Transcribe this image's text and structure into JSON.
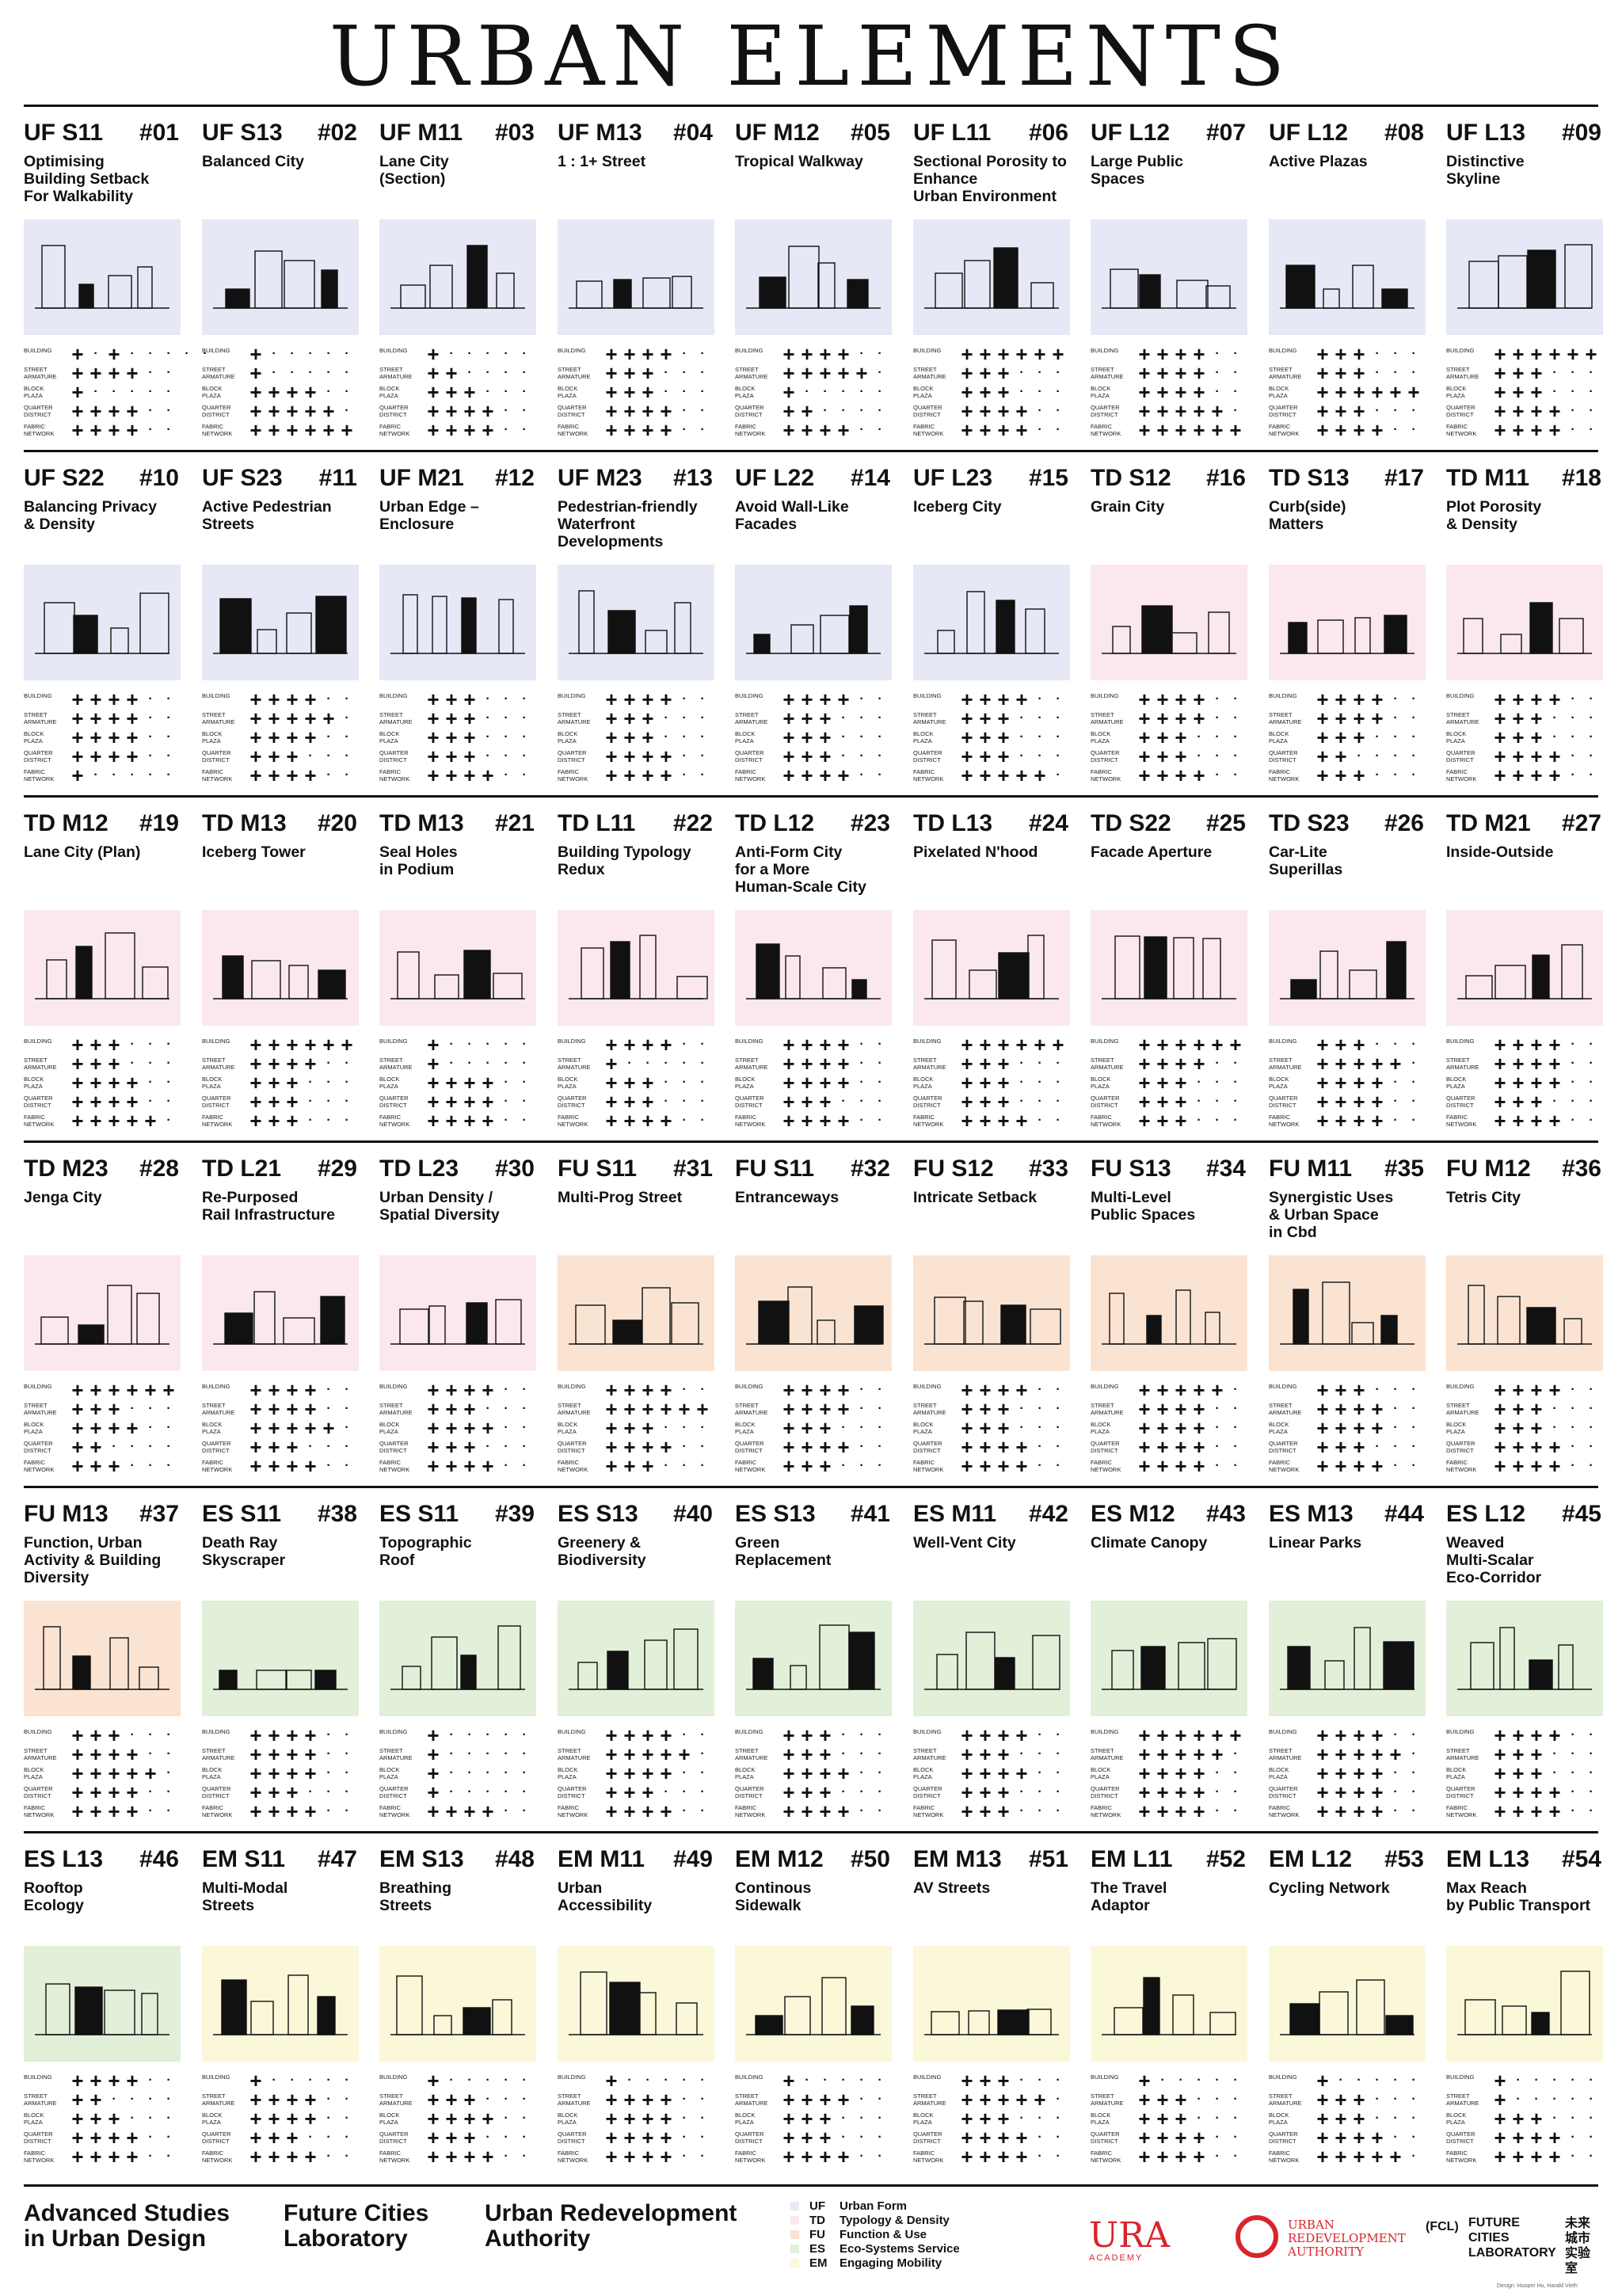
{
  "title": "URBAN ELEMENTS",
  "scale_labels": [
    "BUILDING",
    "STREET\nARMATURE",
    "BLOCK\nPLAZA",
    "QUARTER\nDISTRICT",
    "FABRIC\nNETWORK"
  ],
  "elements": [
    {
      "code": "UF S11",
      "num": "#01",
      "name": "Optimising\nBuilding Setback\nFor Walkability",
      "cat": "UF",
      "scale": [
        "p d p d d d d d",
        "p p p p d d",
        "p d d d d d",
        "p p p p d d",
        "p p p p d d"
      ]
    },
    {
      "code": "UF S13",
      "num": "#02",
      "name": "Balanced City",
      "cat": "UF",
      "scale": [
        "p d d d d d",
        "p d d d d d",
        "p p p p d d",
        "p p p p p d",
        "p p p p p p"
      ]
    },
    {
      "code": "UF M11",
      "num": "#03",
      "name": "Lane City\n(Section)",
      "cat": "UF",
      "scale": [
        "p d d d d d",
        "p p d d d d",
        "p p p d d d",
        "p p p p d d",
        "p p p p d d"
      ]
    },
    {
      "code": "UF M13",
      "num": "#04",
      "name": "1 : 1+ Street",
      "cat": "UF",
      "scale": [
        "p p p p d d",
        "p p p d d d",
        "p p p d d d",
        "p p p p d d",
        "p p p p d d"
      ]
    },
    {
      "code": "UF M12",
      "num": "#05",
      "name": "Tropical Walkway",
      "cat": "UF",
      "scale": [
        "p p p p d d",
        "p p p p p d",
        "p d d d d d",
        "p p d d d d",
        "p p p p d d"
      ]
    },
    {
      "code": "UF L11",
      "num": "#06",
      "name": "Sectional Porosity to\nEnhance\nUrban Environment",
      "cat": "UF",
      "scale": [
        "p p p p p p",
        "p p p d d d",
        "p p p d d d",
        "p p p p d d",
        "p p p p d d"
      ]
    },
    {
      "code": "UF L12",
      "num": "#07",
      "name": "Large Public\nSpaces",
      "cat": "UF",
      "scale": [
        "p p p p d d",
        "p p p p d d",
        "p p p p d d",
        "p p p p p d",
        "p p p p p p"
      ]
    },
    {
      "code": "UF L12",
      "num": "#08",
      "name": "Active Plazas",
      "cat": "UF",
      "scale": [
        "p p p d d d",
        "p p p d d d",
        "p p p p p p",
        "p p p d d d",
        "p p p p d d"
      ]
    },
    {
      "code": "UF L13",
      "num": "#09",
      "name": "Distinctive\nSkyline",
      "cat": "UF",
      "scale": [
        "p p p p p p",
        "p p p d d d",
        "p p p d d d",
        "p p p p d d",
        "p p p p d d"
      ]
    },
    {
      "code": "UF S22",
      "num": "#10",
      "name": "Balancing Privacy\n& Density",
      "cat": "UF",
      "scale": [
        "p p p p d d",
        "p p p p d d",
        "p p p p d d",
        "p p p p d d",
        "p d d d d d"
      ]
    },
    {
      "code": "UF S23",
      "num": "#11",
      "name": "Active Pedestrian\nStreets",
      "cat": "UF",
      "scale": [
        "p p p p d d",
        "p p p p p d",
        "p p p p d d",
        "p p p d d d",
        "p p p p d d"
      ]
    },
    {
      "code": "UF M21",
      "num": "#12",
      "name": "Urban Edge –\nEnclosure",
      "cat": "UF",
      "scale": [
        "p p p d d d",
        "p p p d d d",
        "p p p d d d",
        "p p p d d d",
        "p p p p d d"
      ]
    },
    {
      "code": "UF M23",
      "num": "#13",
      "name": "Pedestrian-friendly\nWaterfront\nDevelopments",
      "cat": "UF",
      "scale": [
        "p p p p d d",
        "p p p d d d",
        "p p p d d d",
        "p p p p d d",
        "p p p p d d"
      ]
    },
    {
      "code": "UF L22",
      "num": "#14",
      "name": "Avoid Wall-Like\nFacades",
      "cat": "UF",
      "scale": [
        "p p p p d d",
        "p p p d d d",
        "p p p d d d",
        "p p p d d d",
        "p p p p d d"
      ]
    },
    {
      "code": "UF L23",
      "num": "#15",
      "name": "Iceberg City",
      "cat": "UF",
      "scale": [
        "p p p p d d",
        "p p p d d d",
        "p p p d d d",
        "p p p d d d",
        "p p p p p d"
      ]
    },
    {
      "code": "TD S12",
      "num": "#16",
      "name": "Grain City",
      "cat": "TD",
      "scale": [
        "p p p p d d",
        "p p p p d d",
        "p p p d d d",
        "p p p d d d",
        "p p p p d d"
      ]
    },
    {
      "code": "TD S13",
      "num": "#17",
      "name": "Curb(side)\nMatters",
      "cat": "TD",
      "scale": [
        "p p p p d d",
        "p p p p d d",
        "p p p d d d",
        "p p d d d d",
        "p p p d d d"
      ]
    },
    {
      "code": "TD M11",
      "num": "#18",
      "name": "Plot Porosity\n& Density",
      "cat": "TD",
      "scale": [
        "p p p p d d",
        "p p p d d d",
        "p p p d d d",
        "p p p p d d",
        "p p p p d d"
      ]
    },
    {
      "code": "TD M12",
      "num": "#19",
      "name": "Lane City (Plan)",
      "cat": "TD",
      "scale": [
        "p p p d d d",
        "p p p d d d",
        "p p p p d d",
        "p p p p d d",
        "p p p p p d"
      ]
    },
    {
      "code": "TD M13",
      "num": "#20",
      "name": "Iceberg Tower",
      "cat": "TD",
      "scale": [
        "p p p p p p",
        "p p p p d d",
        "p p p d d d",
        "p p p d d d",
        "p p p d d d"
      ]
    },
    {
      "code": "TD M13",
      "num": "#21",
      "name": "Seal Holes\nin Podium",
      "cat": "TD",
      "scale": [
        "p d d d d d",
        "p d d d d d",
        "p p p p d d",
        "p p p p d d",
        "p p p p d d"
      ]
    },
    {
      "code": "TD L11",
      "num": "#22",
      "name": "Building Typology\nRedux",
      "cat": "TD",
      "scale": [
        "p p p p d d",
        "p d d d d d",
        "p p p d d d",
        "p p p d d d",
        "p p p p d d"
      ]
    },
    {
      "code": "TD L12",
      "num": "#23",
      "name": "Anti-Form City\nfor a More\nHuman-Scale City",
      "cat": "TD",
      "scale": [
        "p p p p d d",
        "p p p p d d",
        "p p p p d d",
        "p p p d d d",
        "p p p p d d"
      ]
    },
    {
      "code": "TD L13",
      "num": "#24",
      "name": "Pixelated N'hood",
      "cat": "TD",
      "scale": [
        "p p p p p p",
        "p p p d d d",
        "p p p d d d",
        "p p p d d d",
        "p p p p d d"
      ]
    },
    {
      "code": "TD S22",
      "num": "#25",
      "name": "Facade Aperture",
      "cat": "TD",
      "scale": [
        "p p p p p p",
        "p p p p d d",
        "p p p d d d",
        "p p p d d d",
        "p p p d d d"
      ]
    },
    {
      "code": "TD S23",
      "num": "#26",
      "name": "Car-Lite\nSuperillas",
      "cat": "TD",
      "scale": [
        "p p p d d d",
        "p p p p p d",
        "p p p p d d",
        "p p p p d d",
        "p p p p d d"
      ]
    },
    {
      "code": "TD M21",
      "num": "#27",
      "name": "Inside-Outside",
      "cat": "TD",
      "scale": [
        "p p p p d d",
        "p p p p d d",
        "p p p p d d",
        "p p p d d d",
        "p p p p d d"
      ]
    },
    {
      "code": "TD M23",
      "num": "#28",
      "name": "Jenga City",
      "cat": "TD",
      "scale": [
        "p p p p p p",
        "p p p d d d",
        "p p p p d d",
        "p p d d d d",
        "p p p d d d"
      ]
    },
    {
      "code": "TD L21",
      "num": "#29",
      "name": "Re-Purposed\nRail Infrastructure",
      "cat": "TD",
      "scale": [
        "p p p p d d",
        "p p p p d d",
        "p p p p p d",
        "p p p d d d",
        "p p p p d d"
      ]
    },
    {
      "code": "TD L23",
      "num": "#30",
      "name": "Urban Density /\nSpatial Diversity",
      "cat": "TD",
      "scale": [
        "p p p p d d",
        "p p p d d d",
        "p p p p d d",
        "p p p d d d",
        "p p p p d d"
      ]
    },
    {
      "code": "FU S11",
      "num": "#31",
      "name": "Multi-Prog Street",
      "cat": "FU",
      "scale": [
        "p p p p d d",
        "p p p p p p",
        "p p p d d d",
        "p p p p d d",
        "p p p d d d"
      ]
    },
    {
      "code": "FU S11",
      "num": "#32",
      "name": "Entranceways",
      "cat": "FU",
      "scale": [
        "p p p p d d",
        "p p p p d d",
        "p p p d d d",
        "p p p p d d",
        "p p p d d d"
      ]
    },
    {
      "code": "FU S12",
      "num": "#33",
      "name": "Intricate Setback",
      "cat": "FU",
      "scale": [
        "p p p p d d",
        "p p p d d d",
        "p p p d d d",
        "p p p p d d",
        "p p p p d d"
      ]
    },
    {
      "code": "FU S13",
      "num": "#34",
      "name": "Multi-Level\nPublic Spaces",
      "cat": "FU",
      "scale": [
        "p p p p p d",
        "p p p p d d",
        "p p p p d d",
        "p p p p d d",
        "p p p p d d"
      ]
    },
    {
      "code": "FU M11",
      "num": "#35",
      "name": "Synergistic Uses\n& Urban Space\nin Cbd",
      "cat": "FU",
      "scale": [
        "p p p d d d",
        "p p p p d d",
        "p p p p d d",
        "p p p d d d",
        "p p p p d d"
      ]
    },
    {
      "code": "FU M12",
      "num": "#36",
      "name": "Tetris City",
      "cat": "FU",
      "scale": [
        "p p p p d d",
        "p p p d d d",
        "p p p d d d",
        "p p p p d d",
        "p p p p d d"
      ]
    },
    {
      "code": "FU M13",
      "num": "#37",
      "name": "Function, Urban\nActivity & Building\nDiversity",
      "cat": "FU",
      "scale": [
        "p p p d d d",
        "p p p p d d",
        "p p p p p d",
        "p p p p d d",
        "p p p p d d"
      ]
    },
    {
      "code": "ES S11",
      "num": "#38",
      "name": "Death Ray\nSkyscraper",
      "cat": "ES",
      "scale": [
        "p p p p d d",
        "p p p p d d",
        "p p p p d d",
        "p p p d d d",
        "p p p p d d"
      ]
    },
    {
      "code": "ES S11",
      "num": "#39",
      "name": "Topographic\nRoof",
      "cat": "ES",
      "scale": [
        "p d d d d d",
        "p d d d d d",
        "p d d d d d",
        "p d d d d d",
        "p p p p d d"
      ]
    },
    {
      "code": "ES S13",
      "num": "#40",
      "name": "Greenery &\nBiodiversity",
      "cat": "ES",
      "scale": [
        "p p p p d d",
        "p p p p p d",
        "p p p p d d",
        "p p p d d d",
        "p p p p d d"
      ]
    },
    {
      "code": "ES S13",
      "num": "#41",
      "name": "Green\nReplacement",
      "cat": "ES",
      "scale": [
        "p p p d d d",
        "p p p d d d",
        "p p p p d d",
        "p p p d d d",
        "p p p p d d"
      ]
    },
    {
      "code": "ES M11",
      "num": "#42",
      "name": "Well-Vent City",
      "cat": "ES",
      "scale": [
        "p p p p d d",
        "p p p d d d",
        "p p p p d d",
        "p p p d d d",
        "p p p d d d"
      ]
    },
    {
      "code": "ES M12",
      "num": "#43",
      "name": "Climate Canopy",
      "cat": "ES",
      "scale": [
        "p p p p p p",
        "p p p p p d",
        "p p p p d d",
        "p p p p d d",
        "p p p p d d"
      ]
    },
    {
      "code": "ES M13",
      "num": "#44",
      "name": "Linear Parks",
      "cat": "ES",
      "scale": [
        "p p p p d d",
        "p p p p p d",
        "p p p p d d",
        "p p p p d d",
        "p p p p d d"
      ]
    },
    {
      "code": "ES L12",
      "num": "#45",
      "name": "Weaved\nMulti-Scalar\nEco-Corridor",
      "cat": "ES",
      "scale": [
        "p p p p d d",
        "p p p d d d",
        "p p p d d d",
        "p p p p d d",
        "p p p p d d"
      ]
    },
    {
      "code": "ES L13",
      "num": "#46",
      "name": "Rooftop\nEcology",
      "cat": "ES",
      "scale": [
        "p p p p d d",
        "p p d d d d",
        "p p p d d d",
        "p p p p d d",
        "p p p p d d"
      ]
    },
    {
      "code": "EM S11",
      "num": "#47",
      "name": "Multi-Modal\nStreets",
      "cat": "EM",
      "scale": [
        "p d d d d d",
        "p p p p d d",
        "p p p p d d",
        "p p p d d d",
        "p p p p d d"
      ]
    },
    {
      "code": "EM S13",
      "num": "#48",
      "name": "Breathing\nStreets",
      "cat": "EM",
      "scale": [
        "p d d d d d",
        "p p p d d d",
        "p p p p d d",
        "p p p d d d",
        "p p p p d d"
      ]
    },
    {
      "code": "EM M11",
      "num": "#49",
      "name": "Urban\nAccessibility",
      "cat": "EM",
      "scale": [
        "p d d d d d",
        "p p p p d d",
        "p p p p d d",
        "p p p p d d",
        "p p p p d d"
      ]
    },
    {
      "code": "EM M12",
      "num": "#50",
      "name": "Continous\nSidewalk",
      "cat": "EM",
      "scale": [
        "p d d d d d",
        "p p p p d d",
        "p p p d d d",
        "p p p d d d",
        "p p p p d d"
      ]
    },
    {
      "code": "EM M13",
      "num": "#51",
      "name": "AV Streets",
      "cat": "EM",
      "scale": [
        "p p p d d d",
        "p p p p p d",
        "p p p d d d",
        "p p p p d d",
        "p p p p d d"
      ]
    },
    {
      "code": "EM L11",
      "num": "#52",
      "name": "The Travel\nAdaptor",
      "cat": "EM",
      "scale": [
        "p d d d d d",
        "p p p d d d",
        "p p p d d d",
        "p p p p d d",
        "p p p p d d"
      ]
    },
    {
      "code": "EM L12",
      "num": "#53",
      "name": "Cycling Network",
      "cat": "EM",
      "scale": [
        "p d d d d d",
        "p p p d d d",
        "p p p d d d",
        "p p p p d d",
        "p p p p p d"
      ]
    },
    {
      "code": "EM L13",
      "num": "#54",
      "name": "Max Reach\nby Public Transport",
      "cat": "EM",
      "scale": [
        "p d d d d d",
        "p d d d d d",
        "p p p d d d",
        "p p p p d d",
        "p p p p d d"
      ]
    }
  ],
  "footer": {
    "names": [
      "Advanced Studies\nin Urban Design",
      "Future Cities\nLaboratory",
      "Urban Redevelopment\nAuthority"
    ],
    "legend": [
      {
        "abbr": "UF",
        "name": "Urban Form",
        "color": "#e6e8f6"
      },
      {
        "abbr": "TD",
        "name": "Typology & Density",
        "color": "#fbe8ef"
      },
      {
        "abbr": "FU",
        "name": "Function & Use",
        "color": "#fbe3d2"
      },
      {
        "abbr": "ES",
        "name": "Eco-Systems Service",
        "color": "#e2efd9"
      },
      {
        "abbr": "EM",
        "name": "Engaging Mobility",
        "color": "#fbf7d9"
      }
    ],
    "ura_academy": {
      "mark": "URA",
      "sub": "ACADEMY"
    },
    "ura_authority": "URBAN\nREDEVELOPMENT\nAUTHORITY",
    "fcl": {
      "abbr": "(FCL)",
      "name": "FUTURE\nCITIES\nLABORATORY",
      "cn": "未来\n城市\n实验室"
    },
    "credit": "Design: Hooper Hu, Harald Vieth"
  }
}
